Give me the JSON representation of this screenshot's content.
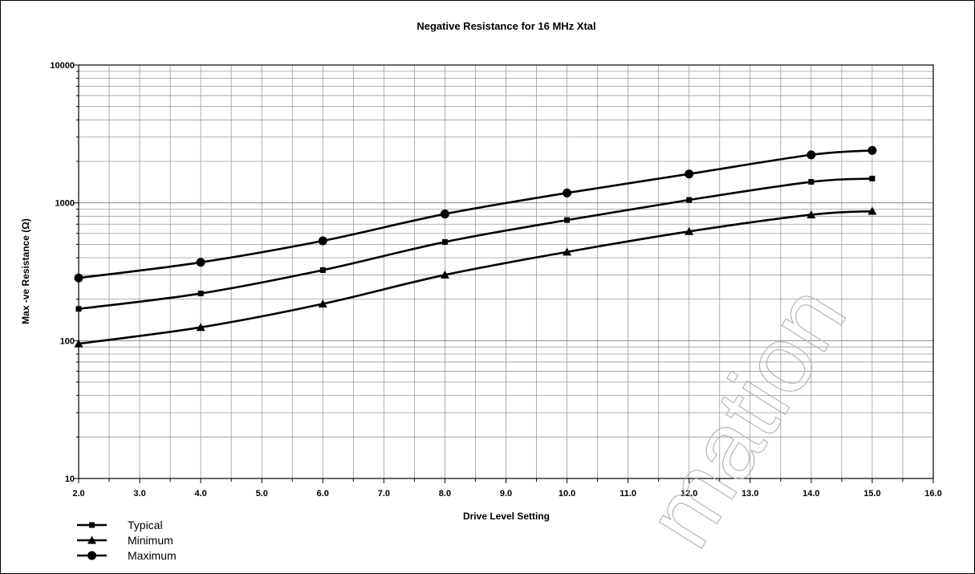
{
  "chart_data": {
    "type": "line",
    "title": "Negative Resistance for 16 MHz Xtal",
    "xlabel": "Drive Level Setting",
    "ylabel": "Max -ve Resistance (Ω)",
    "xlim": [
      2.0,
      16.0
    ],
    "ylim": [
      10,
      10000
    ],
    "y_scale": "log",
    "grid": true,
    "legend_position": "bottom-left",
    "x_ticks": [
      "2.0",
      "3.0",
      "4.0",
      "5.0",
      "6.0",
      "7.0",
      "8.0",
      "9.0",
      "10.0",
      "11.0",
      "12.0",
      "13.0",
      "14.0",
      "15.0",
      "16.0"
    ],
    "y_ticks": [
      "10",
      "100",
      "1000",
      "10000"
    ],
    "x": [
      2,
      4,
      6,
      8,
      10,
      12,
      14,
      15
    ],
    "series": [
      {
        "name": "Typical",
        "marker": "square",
        "values": [
          170,
          220,
          325,
          520,
          750,
          1050,
          1420,
          1500
        ]
      },
      {
        "name": "Minimum",
        "marker": "triangle",
        "values": [
          95,
          125,
          185,
          300,
          440,
          620,
          820,
          870
        ]
      },
      {
        "name": "Maximum",
        "marker": "circle",
        "values": [
          285,
          370,
          530,
          830,
          1180,
          1620,
          2230,
          2400
        ]
      }
    ],
    "colors": {
      "line": "#000000",
      "grid": "#9a9a9a",
      "watermark": "#b5b5b5"
    }
  },
  "watermark": "mation"
}
